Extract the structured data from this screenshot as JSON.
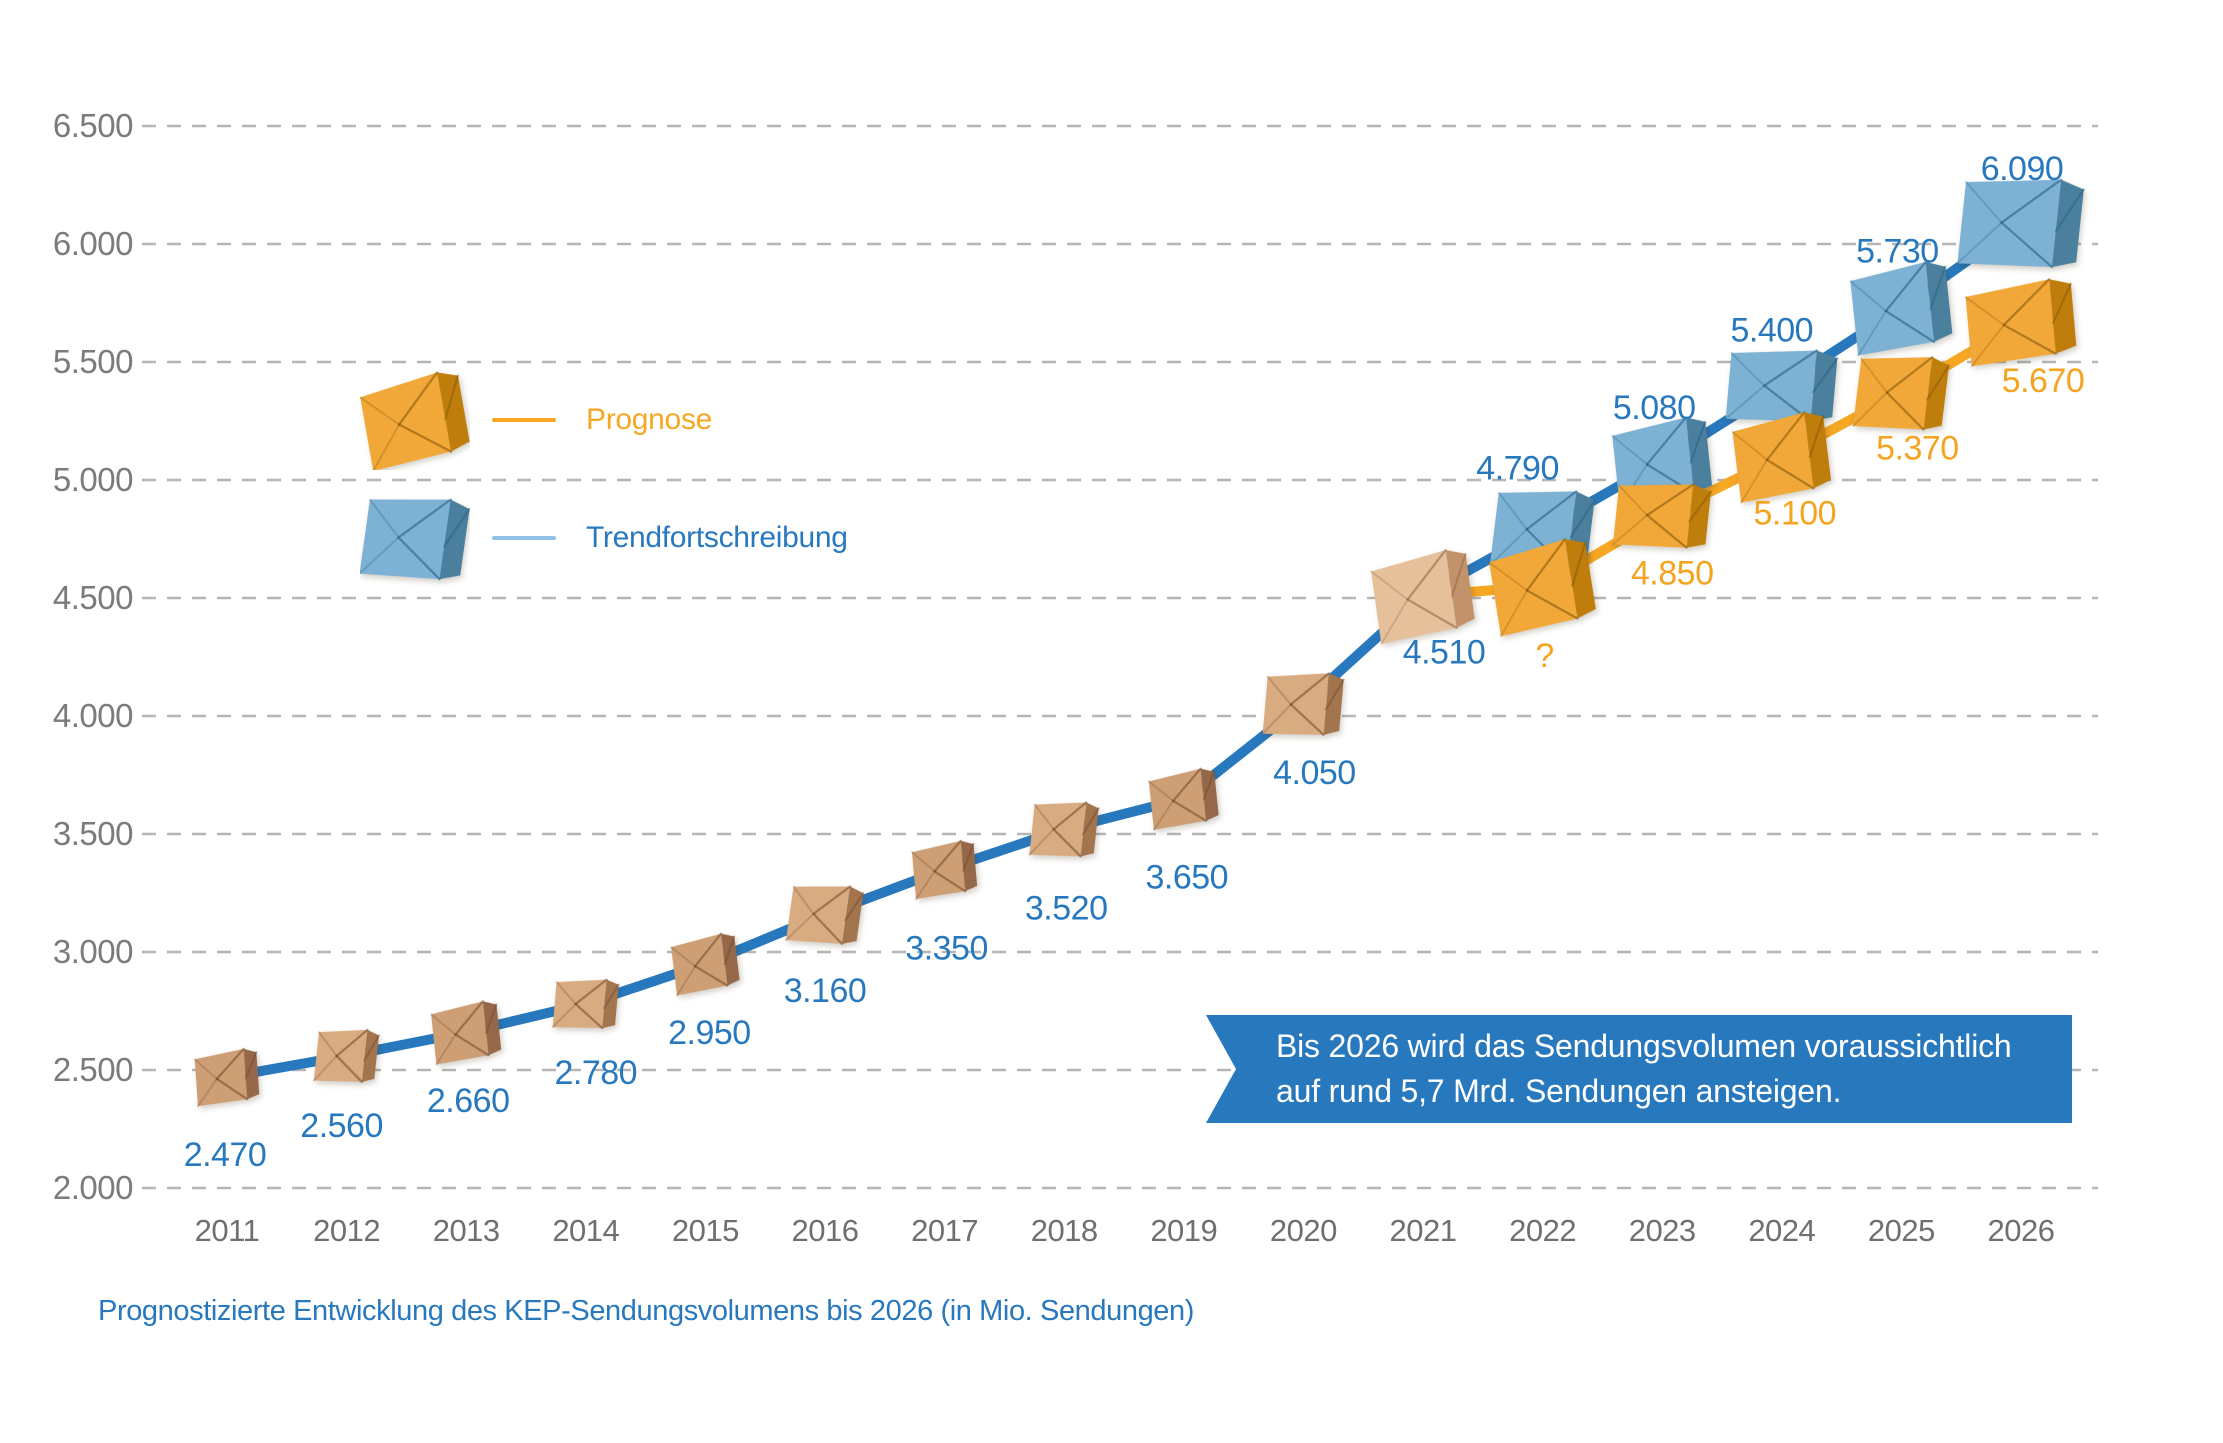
{
  "caption": "Prognostizierte Entwicklung des KEP-Sendungsvolumens bis 2026 (in Mio. Sendungen)",
  "legend": {
    "prognose": "Prognose",
    "trendfortschreibung": "Trendfortschreibung"
  },
  "callout": {
    "line1": "Bis 2026 wird das Sendungsvolumen voraussichtlich",
    "line2": "auf rund 5,7 Mrd. Sendungen ansteigen."
  },
  "chart_data": {
    "type": "line",
    "title": "",
    "xlabel": "",
    "ylabel": "",
    "x_labels": [
      "2011",
      "2012",
      "2013",
      "2014",
      "2015",
      "2016",
      "2017",
      "2018",
      "2019",
      "2020",
      "2021",
      "2022",
      "2023",
      "2024",
      "2025",
      "2026"
    ],
    "y_tick_labels": [
      "6.500",
      "6.000",
      "5.500",
      "5.000",
      "4.500",
      "4.000",
      "3.500",
      "3.000",
      "2.500",
      "2.000"
    ],
    "y_tick_values": [
      6500,
      6000,
      5500,
      5000,
      4500,
      4000,
      3500,
      3000,
      2500,
      2000
    ],
    "ylim": [
      2000,
      6500
    ],
    "grid": "horizontal-dashed",
    "legend_position": "upper-left",
    "series": [
      {
        "name": "Trendfortschreibung",
        "line_color": "#2878BE",
        "label_color": "#2878BE",
        "start_index": 0,
        "values": [
          2470,
          2560,
          2660,
          2780,
          2950,
          3160,
          3350,
          3520,
          3650,
          4050,
          4510,
          4790,
          5080,
          5400,
          5730,
          6090
        ],
        "point_labels": [
          "2.470",
          "2.560",
          "2.660",
          "2.780",
          "2.950",
          "3.160",
          "3.350",
          "3.520",
          "3.650",
          "4.050",
          "4.510",
          "4.790",
          "5.080",
          "5.400",
          "5.730",
          "6.090"
        ],
        "box_style": "cardboard-until-2021-then-blue"
      },
      {
        "name": "Prognose",
        "line_color": "#F6A723",
        "label_color": "#F5A41F",
        "start_index": 10,
        "values": [
          4510,
          null,
          4850,
          5100,
          5370,
          5670
        ],
        "assumed_plot_value_for_unknown": 4550,
        "point_labels": [
          "",
          "?",
          "4.850",
          "5.100",
          "5.370",
          "5.670"
        ],
        "box_style": "yellow-from-2022"
      }
    ]
  },
  "style_colors": {
    "blue": "#2878BE",
    "light_blue_legend_line": "#8FC2E9",
    "orange": "#F6A723",
    "grid": "#B5B5B5",
    "axis_text": "#7B7B7B",
    "year_text": "#6F6F6F",
    "callout_bg": "#2878BE",
    "callout_text": "#FFFFFF",
    "box_brown_front": "#CE9F74",
    "box_brown_side": "#96684A",
    "box_brown_front_alt": "#D8AB80",
    "box_brown_side_alt": "#A3754F",
    "box_beige_front": "#E5C09A",
    "box_beige_side": "#C2936B",
    "box_blue_front": "#7DB2D4",
    "box_blue_side": "#4A809E",
    "box_yellow_front": "#F2A838",
    "box_yellow_side": "#BF7E0B"
  }
}
